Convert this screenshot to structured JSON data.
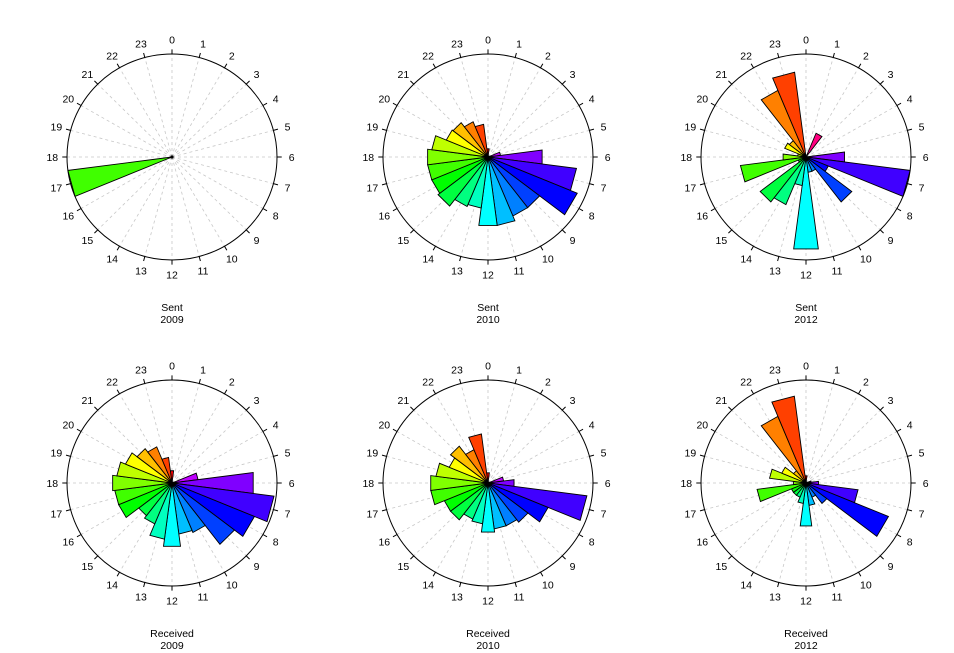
{
  "chart_data": [
    {
      "type": "polar-bar",
      "caption_line1": "Sent",
      "caption_line2": "2009",
      "categories": [
        "0",
        "1",
        "2",
        "3",
        "4",
        "5",
        "6",
        "7",
        "8",
        "9",
        "10",
        "11",
        "12",
        "13",
        "14",
        "15",
        "16",
        "17",
        "18",
        "19",
        "20",
        "21",
        "22",
        "23"
      ],
      "values": [
        0,
        0,
        0,
        0,
        0,
        0,
        0,
        0,
        0,
        0,
        0,
        0,
        0,
        0,
        0,
        0,
        0,
        1.0,
        0,
        0,
        0,
        0,
        0,
        0
      ]
    },
    {
      "type": "polar-bar",
      "caption_line1": "Sent",
      "caption_line2": "2010",
      "categories": [
        "0",
        "1",
        "2",
        "3",
        "4",
        "5",
        "6",
        "7",
        "8",
        "9",
        "10",
        "11",
        "12",
        "13",
        "14",
        "15",
        "16",
        "17",
        "18",
        "19",
        "20",
        "21",
        "22",
        "23"
      ],
      "values": [
        0.08,
        0,
        0,
        0,
        0,
        0.12,
        0.52,
        0.85,
        0.92,
        0.62,
        0.62,
        0.67,
        0.67,
        0.5,
        0.52,
        0.6,
        0.58,
        0.58,
        0.58,
        0.54,
        0.43,
        0.42,
        0.37,
        0.32
      ]
    },
    {
      "type": "polar-bar",
      "caption_line1": "Sent",
      "caption_line2": "2012",
      "categories": [
        "0",
        "1",
        "2",
        "3",
        "4",
        "5",
        "6",
        "7",
        "8",
        "9",
        "10",
        "11",
        "12",
        "13",
        "14",
        "15",
        "16",
        "17",
        "18",
        "19",
        "20",
        "21",
        "22",
        "23"
      ],
      "values": [
        0,
        0,
        0.25,
        0,
        0,
        0,
        0.37,
        1.0,
        0.23,
        0.55,
        0.15,
        0.15,
        0.9,
        0.28,
        0.5,
        0.55,
        0.08,
        0.63,
        0.22,
        0.08,
        0.22,
        0.2,
        0.7,
        0.83
      ]
    },
    {
      "type": "polar-bar",
      "caption_line1": "Received",
      "caption_line2": "2009",
      "categories": [
        "0",
        "1",
        "2",
        "3",
        "4",
        "5",
        "6",
        "7",
        "8",
        "9",
        "10",
        "11",
        "12",
        "13",
        "14",
        "15",
        "16",
        "17",
        "18",
        "19",
        "20",
        "21",
        "22",
        "23"
      ],
      "values": [
        0.12,
        0,
        0,
        0,
        0,
        0.25,
        0.78,
        0.98,
        0.85,
        0.75,
        0.52,
        0.5,
        0.62,
        0.55,
        0.43,
        0.4,
        0.55,
        0.55,
        0.57,
        0.53,
        0.48,
        0.42,
        0.38,
        0.25
      ]
    },
    {
      "type": "polar-bar",
      "caption_line1": "Received",
      "caption_line2": "2010",
      "categories": [
        "0",
        "1",
        "2",
        "3",
        "4",
        "5",
        "6",
        "7",
        "8",
        "9",
        "10",
        "11",
        "12",
        "13",
        "14",
        "15",
        "16",
        "17",
        "18",
        "19",
        "20",
        "21",
        "22",
        "23"
      ],
      "values": [
        0.1,
        0,
        0,
        0,
        0,
        0.15,
        0.25,
        0.95,
        0.62,
        0.48,
        0.45,
        0.45,
        0.48,
        0.4,
        0.38,
        0.45,
        0.45,
        0.55,
        0.55,
        0.5,
        0.4,
        0.45,
        0.35,
        0.48
      ]
    },
    {
      "type": "polar-bar",
      "caption_line1": "Received",
      "caption_line2": "2012",
      "categories": [
        "0",
        "1",
        "2",
        "3",
        "4",
        "5",
        "6",
        "7",
        "8",
        "9",
        "10",
        "11",
        "12",
        "13",
        "14",
        "15",
        "16",
        "17",
        "18",
        "19",
        "20",
        "21",
        "22",
        "23"
      ],
      "values": [
        0.07,
        0,
        0,
        0,
        0,
        0.05,
        0.12,
        0.5,
        0.85,
        0.25,
        0.15,
        0.22,
        0.42,
        0.2,
        0.15,
        0.15,
        0.15,
        0.47,
        0.12,
        0.35,
        0.25,
        0.15,
        0.7,
        0.85
      ]
    }
  ]
}
